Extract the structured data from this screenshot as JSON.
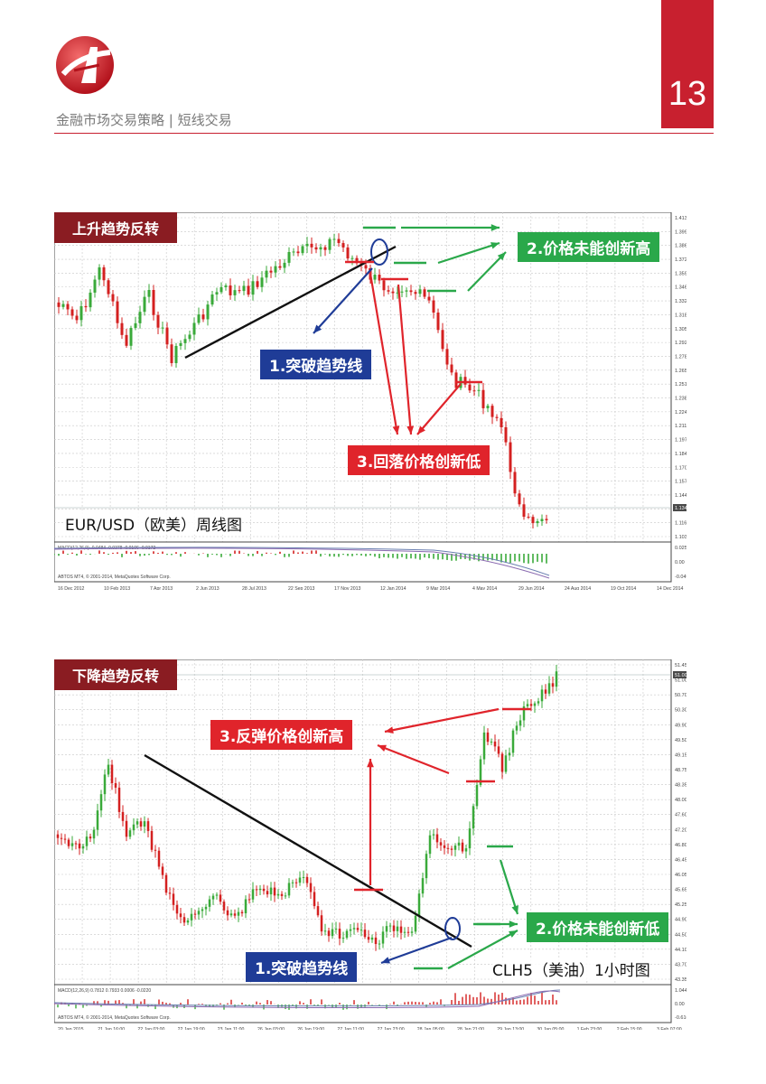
{
  "header": {
    "page_number": "13",
    "breadcrumb": "金融市场交易策略 | 短线交易"
  },
  "chart1": {
    "section_title": "上升趋势反转",
    "label_break": "1.突破趋势线",
    "label_no_new_high": "2.价格未能创新高",
    "label_new_low": "3.回落价格创新低",
    "chart_name": "EUR/USD（欧美）周线图",
    "macd_label": "MACD(12,26,9) -0.0484 -0.0378 -0.0106 -0.0172",
    "copyright": "ABTOS MT4, © 2001-2014, MetaQuotes Software Corp.",
    "x_ticks": [
      "16 Dec 2012",
      "10 Feb 2013",
      "7 Apr 2013",
      "2 Jun 2013",
      "28 Jul 2013",
      "22 Sep 2013",
      "17 Nov 2013",
      "12 Jan 2014",
      "9 Mar 2014",
      "4 May 2014",
      "29 Jun 2014",
      "24 Aug 2014",
      "19 Oct 2014",
      "14 Dec 2014"
    ],
    "y_ticks": [
      "1.41320",
      "1.39960",
      "1.38640",
      "1.37280",
      "1.35920",
      "1.34600",
      "1.33240",
      "1.31880",
      "1.30560",
      "1.29200",
      "1.27840",
      "1.26520",
      "1.25160",
      "1.23800",
      "1.22480",
      "1.21120",
      "1.19760",
      "1.18440",
      "1.17080",
      "1.15720",
      "1.14400",
      "1.13040",
      "1.11680",
      "1.10360"
    ],
    "macd_ticks": [
      "0.0255",
      "0.00",
      "-0.0496"
    ],
    "current_price": "1.1347"
  },
  "chart2": {
    "section_title": "下降趋势反转",
    "label_break": "1.突破趋势线",
    "label_no_new_low": "2.价格未能创新低",
    "label_new_high": "3.反弹价格创新高",
    "chart_name": "CLH5（美油）1小时图",
    "macd_label": "MACD(12,26,9) 0.7812 0.7933 0.0006 -0.0220",
    "copyright": "ABTOS MT4, © 2001-2014, MetaQuotes Software Corp.",
    "x_ticks": [
      "20 Jan 2015",
      "21 Jan 16:00",
      "22 Jan 03:00",
      "22 Jan 19:00",
      "23 Jan 11:00",
      "26 Jan 03:00",
      "26 Jan 19:00",
      "27 Jan 11:00",
      "27 Jan 23:00",
      "28 Jan 05:00",
      "28 Jan 21:00",
      "29 Jan 13:00",
      "30 Jan 05:00",
      "1 Feb 23:00",
      "2 Feb 15:00",
      "3 Feb 07:00"
    ],
    "y_ticks": [
      "51.45",
      "51.00",
      "50.70",
      "50.30",
      "49.90",
      "49.50",
      "49.15",
      "48.75",
      "48.35",
      "48.00",
      "47.60",
      "47.20",
      "46.80",
      "46.45",
      "46.05",
      "45.65",
      "45.25",
      "44.90",
      "44.50",
      "44.10",
      "43.70",
      "43.35"
    ],
    "macd_ticks": [
      "1.0443",
      "0.00",
      "-0.6164"
    ],
    "current_price": "51.00"
  }
}
